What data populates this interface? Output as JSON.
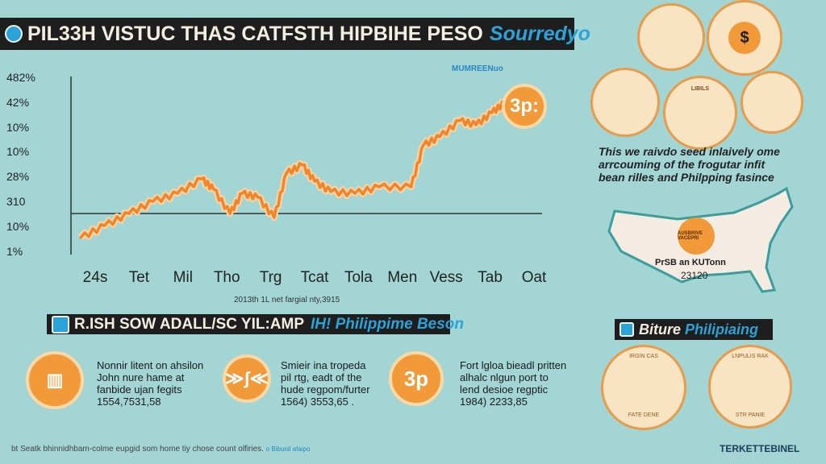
{
  "header": {
    "title": "PIL33H VISTUC THAS CATFSTH HIPBIHE PESO",
    "accent": "Sourredyo"
  },
  "brand_small": "MUMREENuo",
  "chart_data": {
    "type": "line",
    "title": "PIL33H VISTUC THAS CATFSTH HIPBIHE PESO",
    "y_tick_labels": [
      "1%",
      "10%",
      "310",
      "28%",
      "10%",
      "10%",
      "42%",
      "482%"
    ],
    "x_tick_labels": [
      "24s",
      "Tet",
      "Mil",
      "Tho",
      "Trg",
      "Tcat",
      "Tola",
      "Men",
      "Vess",
      "Tab",
      "Oat"
    ],
    "xlim": [
      -0.5,
      10.3
    ],
    "ylim": [
      0,
      7
    ],
    "reference_line": 1.55,
    "series": [
      {
        "name": "peso",
        "color": "#f0852d",
        "x": [
          -0.33,
          0.22,
          0.77,
          1.32,
          1.88,
          2.43,
          2.7,
          3.07,
          3.35,
          3.71,
          4.08,
          4.36,
          4.72,
          5.0,
          5.37,
          5.92,
          6.47,
          7.2,
          7.48,
          7.85,
          8.31,
          8.68,
          9.04,
          9.32
        ],
        "y": [
          0.58,
          1.07,
          1.55,
          2.04,
          2.36,
          2.94,
          2.52,
          1.55,
          2.36,
          2.2,
          1.39,
          3.17,
          3.5,
          2.85,
          2.43,
          2.36,
          2.62,
          2.62,
          4.3,
          4.63,
          5.28,
          5.11,
          5.6,
          5.99
        ]
      }
    ],
    "annotation": "3p:",
    "caption": "2013th 1L net fargial nty,3915"
  },
  "section2": {
    "title": "R.ISH SOW ADALL/SC YIL:AMP",
    "accent": "IH! Philippime Beson"
  },
  "cards": [
    {
      "icon": "building-icon",
      "text": [
        "Nonnir litent on ahsilon",
        "John nure hame at",
        "fanbide ujan fegits",
        "1554,7531,58"
      ]
    },
    {
      "icon": "handshake-icon",
      "text": [
        "Smieir ina tropeda",
        "pil rtg, eadt of the",
        "hude regpom/furter",
        "1564) 3553,65 ."
      ]
    },
    {
      "icon": "3p",
      "text": [
        "Fort lgloa bieadl pritten",
        "alhalc nlgun port to",
        "lend desioe regptic",
        "1984) 2233,85"
      ]
    }
  ],
  "footer": {
    "text": "bt Seatk bhinnidhbam-colme eupgid som home tiy chose count olfiries.",
    "accent": "o Bibunil afaipo"
  },
  "right": {
    "desc": [
      "This we raivdo seed inlaively ome",
      "arrcouming of the frogutar infit",
      "bean rilles and Philpping fasince"
    ],
    "map_badge": "AUSBRIVE VACEPRI",
    "map_label": "PrSB an KUTonn",
    "map_value": "23120",
    "section_title": "Biture",
    "section_accent": "Philipiaing",
    "food_labels": [
      "IRGIN CAS",
      "FATE DENE",
      "LNPULIS RAK",
      "STR PANIE"
    ],
    "top_labels": [
      "LIBILS"
    ],
    "brand": "TERKETTEBINEL"
  },
  "colors": {
    "bg": "#a2d5d3",
    "orange": "#f29a3a",
    "accent": "#2ba3d8",
    "bar": "#1e1e1e"
  }
}
